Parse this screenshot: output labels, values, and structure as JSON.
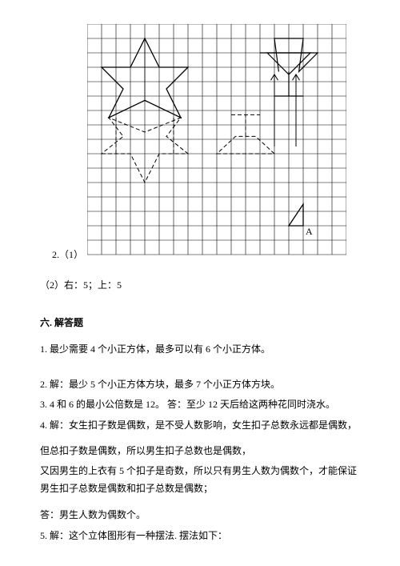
{
  "grid": {
    "cols": 18,
    "rows": 16,
    "cell": 18,
    "stroke": "#000000",
    "stroke_width": 0.8,
    "label_below": "A",
    "dash_pattern": "5,3"
  },
  "q2_1_prefix": "2.（1）",
  "q2_2": "（2）右：5；上：5",
  "section6_title": "六. 解答题",
  "ans1": "1. 最少需要 4 个小正方体，最多可以有 6 个小正方体。",
  "ans2": "2. 解：最少 5 个小正方体方块，最多 7 个小正方体方块。",
  "ans3": "3. 4 和 6 的最小公倍数是 12。 答：至少 12 天后给这两种花同时浇水。",
  "ans4": "4. 解：女生扣子数是偶数，是不受人数影响，女生扣子总数永远都是偶数，",
  "ans4b": "但总扣子数是偶数，所以男生扣子总数也是偶数，",
  "ans4c": "又因男生的上衣有 5 个扣子是奇数，所以只有男生人数为偶数个，才能保证男生扣子总数是偶数和扣子总数是偶数；",
  "ans4d": "答：男生人数为偶数个。",
  "ans5": "5. 解：这个立体图形有一种摆法. 摆法如下："
}
